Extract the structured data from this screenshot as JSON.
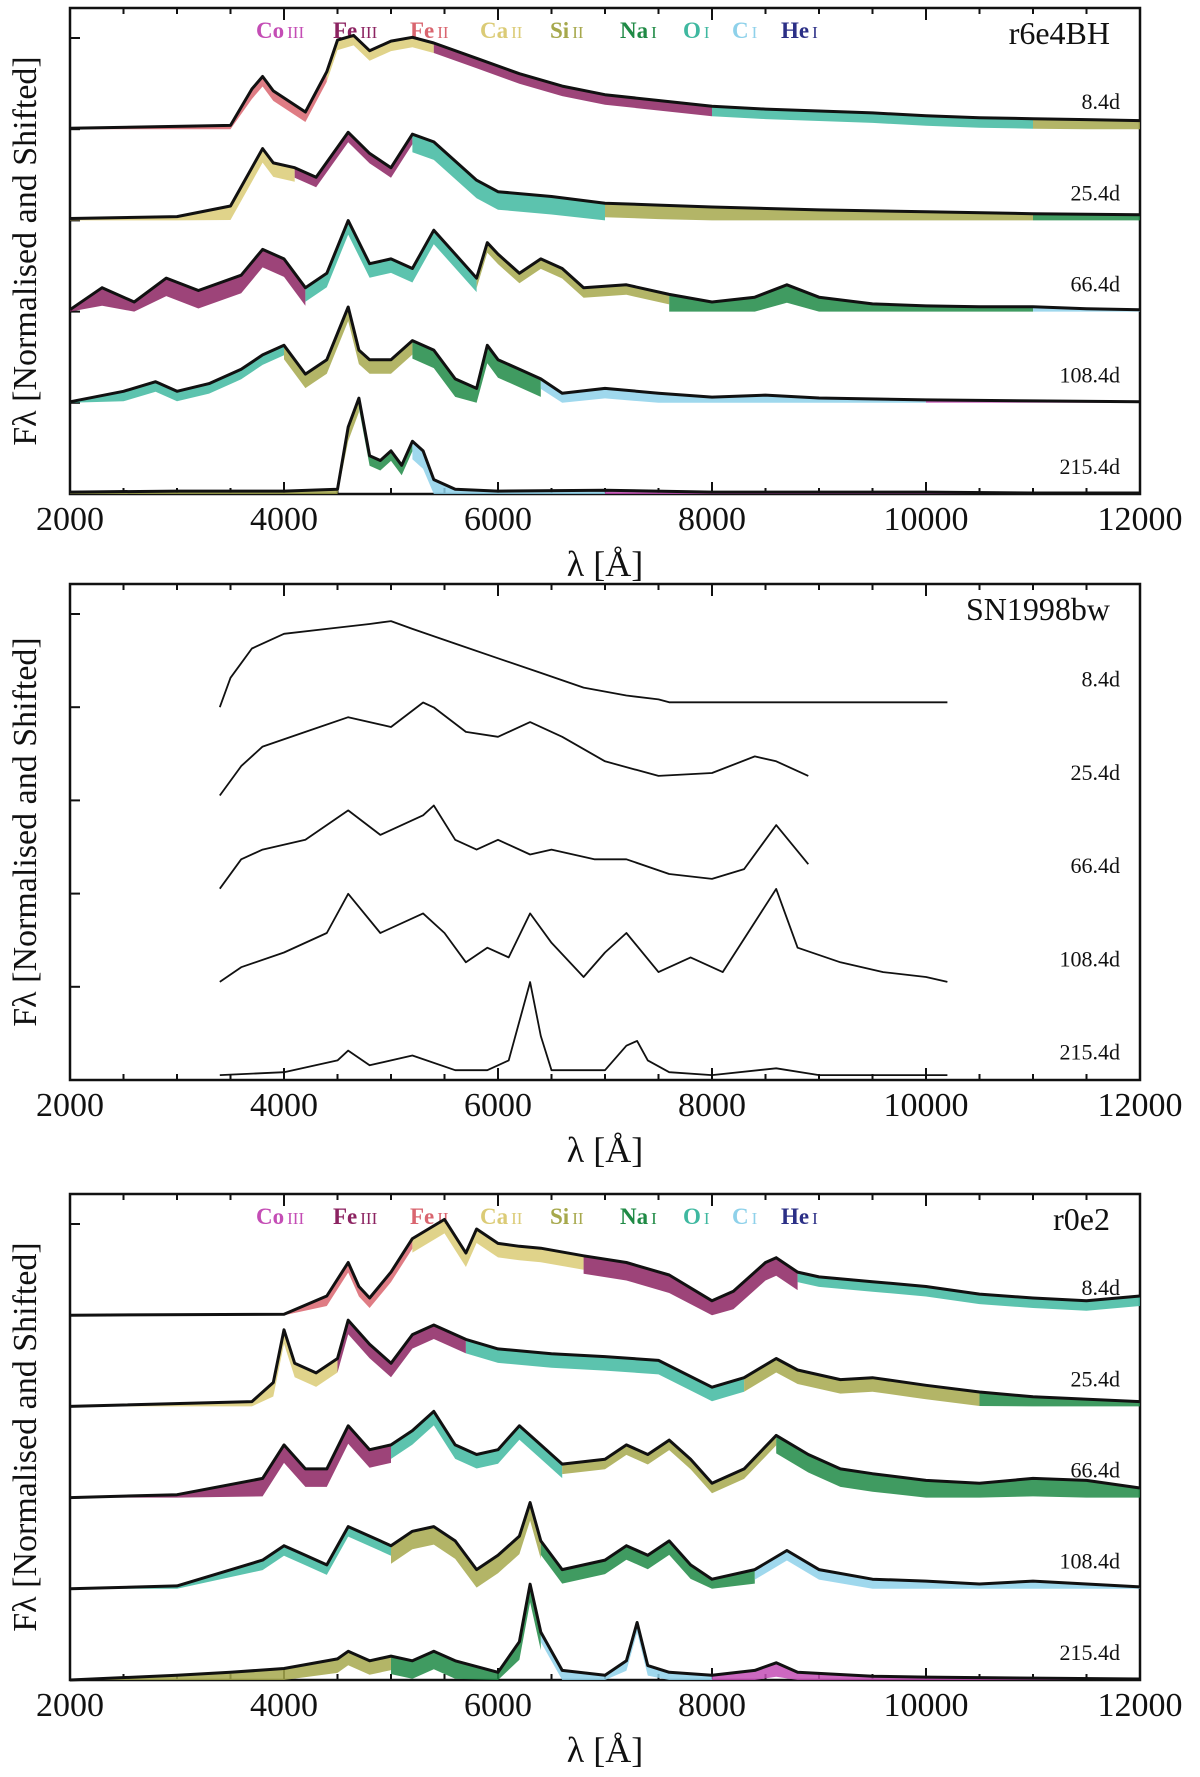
{
  "chart_data": [
    {
      "type": "line",
      "title": "r6e4BH",
      "xlabel": "λ [Å]",
      "ylabel": "Fλ [Normalised and Shifted]",
      "xlim": [
        2000,
        12000
      ],
      "xticks": [
        "2000",
        "4000",
        "6000",
        "8000",
        "10000",
        "12000"
      ],
      "legend": [
        {
          "element": "Co",
          "ion": "III",
          "color": "#c44db5"
        },
        {
          "element": "Fe",
          "ion": "III",
          "color": "#8c2361"
        },
        {
          "element": "Fe",
          "ion": "II",
          "color": "#d9656f"
        },
        {
          "element": "Ca",
          "ion": "II",
          "color": "#dbcb76"
        },
        {
          "element": "Si",
          "ion": "II",
          "color": "#a6a84c"
        },
        {
          "element": "Na",
          "ion": "I",
          "color": "#1f8a45"
        },
        {
          "element": "O",
          "ion": "I",
          "color": "#3fb8a0"
        },
        {
          "element": "C",
          "ion": "I",
          "color": "#8ed1ea"
        },
        {
          "element": "He",
          "ion": "I",
          "color": "#2b2f86"
        }
      ],
      "series": [
        {
          "name": "8.4d",
          "x": [
            2000,
            3500,
            3700,
            3800,
            3900,
            4200,
            4400,
            4500,
            4650,
            4800,
            5000,
            5200,
            5400,
            5800,
            6200,
            6600,
            7000,
            7500,
            8000,
            8500,
            9000,
            9500,
            10000,
            10500,
            11000,
            11500,
            12000
          ],
          "y": [
            0.01,
            0.04,
            0.42,
            0.55,
            0.4,
            0.18,
            0.6,
            0.93,
            0.98,
            0.82,
            0.92,
            0.96,
            0.9,
            0.74,
            0.58,
            0.45,
            0.36,
            0.3,
            0.24,
            0.21,
            0.19,
            0.17,
            0.14,
            0.12,
            0.11,
            0.1,
            0.09
          ]
        },
        {
          "name": "25.4d",
          "x": [
            2000,
            3000,
            3500,
            3800,
            3900,
            4100,
            4300,
            4600,
            4800,
            5000,
            5200,
            5400,
            5800,
            6000,
            6500,
            7000,
            7500,
            8000,
            9000,
            10000,
            11000,
            12000
          ],
          "y": [
            0.02,
            0.04,
            0.15,
            0.75,
            0.6,
            0.55,
            0.45,
            0.92,
            0.7,
            0.55,
            0.9,
            0.82,
            0.42,
            0.3,
            0.25,
            0.18,
            0.16,
            0.14,
            0.11,
            0.09,
            0.07,
            0.06
          ]
        },
        {
          "name": "66.4d",
          "x": [
            2000,
            2300,
            2600,
            2900,
            3200,
            3600,
            3800,
            4000,
            4200,
            4400,
            4600,
            4800,
            5000,
            5200,
            5400,
            5600,
            5800,
            5900,
            6000,
            6200,
            6400,
            6600,
            6800,
            7200,
            7600,
            8000,
            8400,
            8700,
            9000,
            9500,
            10000,
            10500,
            11000,
            11500,
            12000
          ],
          "y": [
            0.02,
            0.25,
            0.1,
            0.35,
            0.22,
            0.38,
            0.65,
            0.55,
            0.25,
            0.4,
            0.95,
            0.5,
            0.55,
            0.45,
            0.85,
            0.6,
            0.35,
            0.72,
            0.6,
            0.4,
            0.55,
            0.45,
            0.25,
            0.28,
            0.18,
            0.1,
            0.15,
            0.28,
            0.15,
            0.08,
            0.06,
            0.05,
            0.05,
            0.03,
            0.02
          ]
        },
        {
          "name": "108.4d",
          "x": [
            2000,
            2500,
            2800,
            3000,
            3300,
            3600,
            3800,
            4000,
            4200,
            4400,
            4600,
            4700,
            4800,
            5000,
            5200,
            5400,
            5600,
            5800,
            5900,
            6000,
            6200,
            6400,
            6600,
            7000,
            7500,
            8000,
            8500,
            9000,
            10000,
            11000,
            12000
          ],
          "y": [
            0.01,
            0.12,
            0.22,
            0.12,
            0.2,
            0.35,
            0.5,
            0.6,
            0.3,
            0.45,
            1.0,
            0.55,
            0.45,
            0.45,
            0.65,
            0.55,
            0.25,
            0.15,
            0.6,
            0.45,
            0.35,
            0.25,
            0.1,
            0.15,
            0.1,
            0.06,
            0.08,
            0.05,
            0.03,
            0.02,
            0.01
          ]
        },
        {
          "name": "215.4d",
          "x": [
            2000,
            3000,
            4000,
            4500,
            4600,
            4700,
            4800,
            4900,
            5000,
            5100,
            5200,
            5300,
            5400,
            5600,
            6000,
            7000,
            8000,
            9000,
            10000,
            11000,
            12000
          ],
          "y": [
            0.02,
            0.03,
            0.03,
            0.05,
            0.7,
            1.0,
            0.4,
            0.35,
            0.45,
            0.3,
            0.55,
            0.45,
            0.15,
            0.05,
            0.03,
            0.04,
            0.02,
            0.02,
            0.02,
            0.01,
            0.01
          ]
        }
      ]
    },
    {
      "type": "line",
      "title": "SN1998bw",
      "xlabel": "λ [Å]",
      "ylabel": "Fλ [Normalised and Shifted]",
      "xlim": [
        2000,
        12000
      ],
      "xticks": [
        "2000",
        "4000",
        "6000",
        "8000",
        "10000",
        "12000"
      ],
      "series": [
        {
          "name": "8.4d",
          "x": [
            3400,
            3500,
            3600,
            3700,
            4000,
            4400,
            4800,
            5000,
            5200,
            5600,
            6000,
            6400,
            6800,
            7200,
            7500,
            7600,
            8000,
            9000,
            10000,
            10200
          ],
          "y": [
            0.0,
            0.3,
            0.45,
            0.6,
            0.75,
            0.8,
            0.85,
            0.88,
            0.8,
            0.65,
            0.5,
            0.35,
            0.2,
            0.12,
            0.08,
            0.05,
            0.05,
            0.05,
            0.05,
            0.05
          ]
        },
        {
          "name": "25.4d",
          "x": [
            3400,
            3600,
            3800,
            4200,
            4600,
            5000,
            5300,
            5400,
            5700,
            6000,
            6300,
            6600,
            7000,
            7500,
            8000,
            8400,
            8600,
            8900
          ],
          "y": [
            0.05,
            0.35,
            0.55,
            0.7,
            0.85,
            0.75,
            1.0,
            0.95,
            0.7,
            0.65,
            0.8,
            0.65,
            0.4,
            0.25,
            0.28,
            0.45,
            0.4,
            0.25
          ]
        },
        {
          "name": "66.4d",
          "x": [
            3400,
            3600,
            3800,
            4200,
            4600,
            4900,
            5300,
            5400,
            5600,
            5800,
            6000,
            6300,
            6500,
            6900,
            7200,
            7600,
            8000,
            8300,
            8600,
            8900
          ],
          "y": [
            0.05,
            0.35,
            0.45,
            0.55,
            0.85,
            0.6,
            0.8,
            0.9,
            0.55,
            0.45,
            0.55,
            0.4,
            0.45,
            0.35,
            0.35,
            0.2,
            0.15,
            0.25,
            0.7,
            0.3
          ]
        },
        {
          "name": "108.4d",
          "x": [
            3400,
            3600,
            4000,
            4400,
            4600,
            4900,
            5300,
            5500,
            5700,
            5900,
            6100,
            6300,
            6500,
            6800,
            7000,
            7200,
            7500,
            7800,
            8100,
            8600,
            8800,
            9200,
            9600,
            10000,
            10200
          ],
          "y": [
            0.05,
            0.2,
            0.35,
            0.55,
            0.95,
            0.55,
            0.75,
            0.55,
            0.25,
            0.4,
            0.3,
            0.75,
            0.45,
            0.1,
            0.35,
            0.55,
            0.15,
            0.3,
            0.15,
            1.0,
            0.4,
            0.25,
            0.15,
            0.1,
            0.05
          ]
        },
        {
          "name": "215.4d",
          "x": [
            3400,
            4000,
            4500,
            4600,
            4800,
            5200,
            5600,
            5900,
            6100,
            6200,
            6300,
            6400,
            6500,
            7000,
            7200,
            7300,
            7400,
            7600,
            8000,
            8600,
            9000,
            10000,
            10200
          ],
          "y": [
            0.05,
            0.08,
            0.2,
            0.3,
            0.15,
            0.25,
            0.1,
            0.1,
            0.2,
            0.6,
            1.0,
            0.45,
            0.1,
            0.1,
            0.35,
            0.4,
            0.2,
            0.08,
            0.05,
            0.12,
            0.05,
            0.05,
            0.05
          ]
        }
      ]
    },
    {
      "type": "line",
      "title": "r0e2",
      "xlabel": "λ [Å]",
      "ylabel": "Fλ [Normalised and Shifted]",
      "xlim": [
        2000,
        12000
      ],
      "xticks": [
        "2000",
        "4000",
        "6000",
        "8000",
        "10000",
        "12000"
      ],
      "legend": [
        {
          "element": "Co",
          "ion": "III",
          "color": "#c44db5"
        },
        {
          "element": "Fe",
          "ion": "III",
          "color": "#8c2361"
        },
        {
          "element": "Fe",
          "ion": "II",
          "color": "#d9656f"
        },
        {
          "element": "Ca",
          "ion": "II",
          "color": "#dbcb76"
        },
        {
          "element": "Si",
          "ion": "II",
          "color": "#a6a84c"
        },
        {
          "element": "Na",
          "ion": "I",
          "color": "#1f8a45"
        },
        {
          "element": "O",
          "ion": "I",
          "color": "#3fb8a0"
        },
        {
          "element": "C",
          "ion": "I",
          "color": "#8ed1ea"
        },
        {
          "element": "He",
          "ion": "I",
          "color": "#2b2f86"
        }
      ],
      "series": [
        {
          "name": "8.4d",
          "x": [
            2000,
            4000,
            4400,
            4600,
            4700,
            4800,
            5000,
            5200,
            5500,
            5700,
            5800,
            6000,
            6200,
            6400,
            6800,
            7200,
            7600,
            8000,
            8200,
            8500,
            8600,
            8800,
            9000,
            9500,
            10000,
            10500,
            11000,
            11500,
            12000
          ],
          "y": [
            0.0,
            0.01,
            0.2,
            0.55,
            0.3,
            0.18,
            0.45,
            0.8,
            1.0,
            0.65,
            0.9,
            0.75,
            0.72,
            0.7,
            0.62,
            0.55,
            0.42,
            0.15,
            0.25,
            0.55,
            0.6,
            0.45,
            0.4,
            0.35,
            0.3,
            0.22,
            0.18,
            0.15,
            0.2
          ]
        },
        {
          "name": "25.4d",
          "x": [
            2000,
            3700,
            3900,
            4000,
            4100,
            4300,
            4500,
            4600,
            4800,
            5000,
            5200,
            5400,
            5700,
            6000,
            6500,
            7000,
            7500,
            8000,
            8300,
            8600,
            8800,
            9200,
            9500,
            10000,
            10500,
            11000,
            12000
          ],
          "y": [
            0.0,
            0.05,
            0.25,
            0.8,
            0.45,
            0.35,
            0.5,
            0.9,
            0.65,
            0.45,
            0.75,
            0.85,
            0.7,
            0.6,
            0.55,
            0.52,
            0.48,
            0.2,
            0.3,
            0.5,
            0.38,
            0.28,
            0.3,
            0.22,
            0.15,
            0.1,
            0.05
          ]
        },
        {
          "name": "66.4d",
          "x": [
            2000,
            3000,
            3800,
            4000,
            4200,
            4400,
            4600,
            4800,
            5000,
            5200,
            5400,
            5600,
            5800,
            6000,
            6200,
            6400,
            6600,
            7000,
            7200,
            7400,
            7600,
            7800,
            8000,
            8300,
            8600,
            8900,
            9200,
            9500,
            10000,
            10500,
            11000,
            11500,
            12000
          ],
          "y": [
            0.0,
            0.03,
            0.2,
            0.55,
            0.3,
            0.3,
            0.75,
            0.5,
            0.55,
            0.7,
            0.9,
            0.55,
            0.45,
            0.5,
            0.75,
            0.55,
            0.35,
            0.4,
            0.55,
            0.45,
            0.6,
            0.4,
            0.15,
            0.3,
            0.65,
            0.45,
            0.3,
            0.25,
            0.18,
            0.15,
            0.2,
            0.18,
            0.1
          ]
        },
        {
          "name": "108.4d",
          "x": [
            2000,
            3000,
            3800,
            4000,
            4200,
            4400,
            4600,
            4800,
            5000,
            5200,
            5400,
            5600,
            5800,
            6000,
            6200,
            6300,
            6400,
            6600,
            7000,
            7200,
            7400,
            7600,
            7800,
            8000,
            8400,
            8700,
            9000,
            9500,
            10000,
            10500,
            11000,
            11500,
            12000
          ],
          "y": [
            0.0,
            0.03,
            0.3,
            0.45,
            0.35,
            0.25,
            0.65,
            0.55,
            0.45,
            0.6,
            0.65,
            0.5,
            0.2,
            0.35,
            0.55,
            0.9,
            0.5,
            0.2,
            0.3,
            0.45,
            0.35,
            0.5,
            0.25,
            0.1,
            0.2,
            0.4,
            0.2,
            0.1,
            0.08,
            0.05,
            0.08,
            0.05,
            0.02
          ]
        },
        {
          "name": "215.4d",
          "x": [
            2000,
            3000,
            3500,
            4000,
            4500,
            4600,
            4800,
            5000,
            5200,
            5400,
            5600,
            6000,
            6200,
            6300,
            6400,
            6600,
            7000,
            7200,
            7300,
            7400,
            7600,
            8000,
            8400,
            8600,
            8800,
            9500,
            10000,
            11000,
            12000
          ],
          "y": [
            0.0,
            0.05,
            0.08,
            0.12,
            0.22,
            0.3,
            0.2,
            0.25,
            0.2,
            0.3,
            0.2,
            0.08,
            0.4,
            1.0,
            0.5,
            0.1,
            0.05,
            0.2,
            0.6,
            0.15,
            0.08,
            0.05,
            0.1,
            0.18,
            0.08,
            0.04,
            0.03,
            0.02,
            0.01
          ]
        }
      ]
    }
  ]
}
